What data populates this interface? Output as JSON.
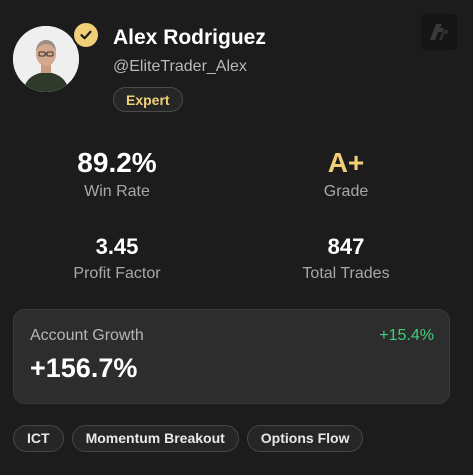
{
  "profile": {
    "name": "Alex Rodriguez",
    "handle": "@EliteTrader_Alex",
    "badge": "Expert",
    "avatar_icon": "person-photo",
    "verified_icon": "check-icon"
  },
  "stats": {
    "win_rate": {
      "value": "89.2%",
      "label": "Win Rate"
    },
    "grade": {
      "value": "A+",
      "label": "Grade"
    },
    "profit_factor": {
      "value": "3.45",
      "label": "Profit Factor"
    },
    "total_trades": {
      "value": "847",
      "label": "Total Trades"
    }
  },
  "growth": {
    "label": "Account Growth",
    "value": "+156.7%",
    "change": "+15.4%"
  },
  "tags": [
    "ICT",
    "Momentum Breakout",
    "Options Flow"
  ],
  "colors": {
    "background": "#1c1c1c",
    "accent_gold": "#f1cf76",
    "positive_green": "#3fd07a",
    "panel": "#2d2d2d"
  }
}
